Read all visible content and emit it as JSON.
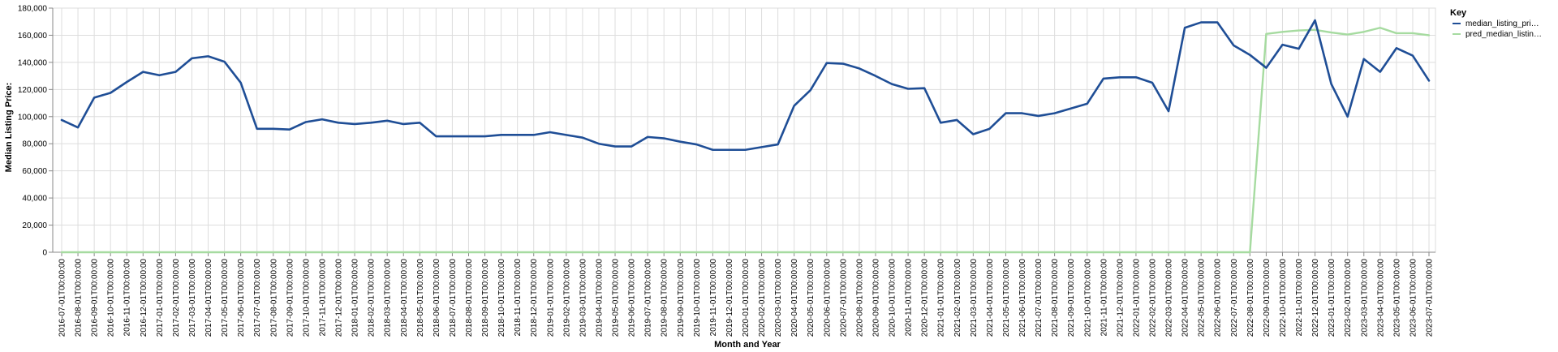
{
  "chart_data": {
    "type": "line",
    "xlabel": "Month and Year",
    "ylabel": "Median Listing Price:",
    "ylim": [
      0,
      180000
    ],
    "yticks": [
      0,
      20000,
      40000,
      60000,
      80000,
      100000,
      120000,
      140000,
      160000,
      180000
    ],
    "ytick_labels": [
      "0",
      "20,000",
      "40,000",
      "60,000",
      "80,000",
      "100,000",
      "120,000",
      "140,000",
      "160,000",
      "180,000"
    ],
    "grid": true,
    "legend": {
      "title": "Key",
      "placement": "right"
    },
    "x": [
      "2016-07-01T00:00:00",
      "2016-08-01T00:00:00",
      "2016-09-01T00:00:00",
      "2016-10-01T00:00:00",
      "2016-11-01T00:00:00",
      "2016-12-01T00:00:00",
      "2017-01-01T00:00:00",
      "2017-02-01T00:00:00",
      "2017-03-01T00:00:00",
      "2017-04-01T00:00:00",
      "2017-05-01T00:00:00",
      "2017-06-01T00:00:00",
      "2017-07-01T00:00:00",
      "2017-08-01T00:00:00",
      "2017-09-01T00:00:00",
      "2017-10-01T00:00:00",
      "2017-11-01T00:00:00",
      "2017-12-01T00:00:00",
      "2018-01-01T00:00:00",
      "2018-02-01T00:00:00",
      "2018-03-01T00:00:00",
      "2018-04-01T00:00:00",
      "2018-05-01T00:00:00",
      "2018-06-01T00:00:00",
      "2018-07-01T00:00:00",
      "2018-08-01T00:00:00",
      "2018-09-01T00:00:00",
      "2018-10-01T00:00:00",
      "2018-11-01T00:00:00",
      "2018-12-01T00:00:00",
      "2019-01-01T00:00:00",
      "2019-02-01T00:00:00",
      "2019-03-01T00:00:00",
      "2019-04-01T00:00:00",
      "2019-05-01T00:00:00",
      "2019-06-01T00:00:00",
      "2019-07-01T00:00:00",
      "2019-08-01T00:00:00",
      "2019-09-01T00:00:00",
      "2019-10-01T00:00:00",
      "2019-11-01T00:00:00",
      "2019-12-01T00:00:00",
      "2020-01-01T00:00:00",
      "2020-02-01T00:00:00",
      "2020-03-01T00:00:00",
      "2020-04-01T00:00:00",
      "2020-05-01T00:00:00",
      "2020-06-01T00:00:00",
      "2020-07-01T00:00:00",
      "2020-08-01T00:00:00",
      "2020-09-01T00:00:00",
      "2020-10-01T00:00:00",
      "2020-11-01T00:00:00",
      "2020-12-01T00:00:00",
      "2021-01-01T00:00:00",
      "2021-02-01T00:00:00",
      "2021-03-01T00:00:00",
      "2021-04-01T00:00:00",
      "2021-05-01T00:00:00",
      "2021-06-01T00:00:00",
      "2021-07-01T00:00:00",
      "2021-08-01T00:00:00",
      "2021-09-01T00:00:00",
      "2021-10-01T00:00:00",
      "2021-11-01T00:00:00",
      "2021-12-01T00:00:00",
      "2022-01-01T00:00:00",
      "2022-02-01T00:00:00",
      "2022-03-01T00:00:00",
      "2022-04-01T00:00:00",
      "2022-05-01T00:00:00",
      "2022-06-01T00:00:00",
      "2022-07-01T00:00:00",
      "2022-08-01T00:00:00",
      "2022-09-01T00:00:00",
      "2022-10-01T00:00:00",
      "2022-11-01T00:00:00",
      "2022-12-01T00:00:00",
      "2023-01-01T00:00:00",
      "2023-02-01T00:00:00",
      "2023-03-01T00:00:00",
      "2023-04-01T00:00:00",
      "2023-05-01T00:00:00",
      "2023-06-01T00:00:00",
      "2023-07-01T00:00:00"
    ],
    "series": [
      {
        "name": "median_listing_pri…",
        "color": "#1f4e96",
        "values": [
          97500,
          92000,
          114000,
          117500,
          125500,
          133000,
          130500,
          133000,
          143000,
          144500,
          140500,
          125000,
          91000,
          91000,
          90500,
          96000,
          98000,
          95500,
          94500,
          95500,
          97000,
          94500,
          95500,
          85500,
          85500,
          85500,
          85500,
          86500,
          86500,
          86500,
          88500,
          86500,
          84500,
          80000,
          78000,
          78000,
          85000,
          84000,
          81500,
          79500,
          75500,
          75500,
          75500,
          77500,
          79500,
          108000,
          119500,
          139500,
          139000,
          135500,
          130000,
          124000,
          120500,
          121000,
          95500,
          97500,
          87000,
          91000,
          102500,
          102500,
          100500,
          102500,
          106000,
          109500,
          128000,
          129000,
          129000,
          125000,
          104000,
          165500,
          169500,
          169500,
          152500,
          145500,
          136000,
          153000,
          150000,
          171000,
          124000,
          100000,
          142500,
          133000,
          150500,
          145000,
          126500
        ]
      },
      {
        "name": "pred_median_listin…",
        "color": "#a6dba0",
        "values": [
          0,
          0,
          0,
          0,
          0,
          0,
          0,
          0,
          0,
          0,
          0,
          0,
          0,
          0,
          0,
          0,
          0,
          0,
          0,
          0,
          0,
          0,
          0,
          0,
          0,
          0,
          0,
          0,
          0,
          0,
          0,
          0,
          0,
          0,
          0,
          0,
          0,
          0,
          0,
          0,
          0,
          0,
          0,
          0,
          0,
          0,
          0,
          0,
          0,
          0,
          0,
          0,
          0,
          0,
          0,
          0,
          0,
          0,
          0,
          0,
          0,
          0,
          0,
          0,
          0,
          0,
          0,
          0,
          0,
          0,
          0,
          0,
          0,
          0,
          161000,
          162500,
          163500,
          164000,
          162000,
          160500,
          162500,
          165500,
          161500,
          161500,
          160000
        ]
      }
    ]
  }
}
